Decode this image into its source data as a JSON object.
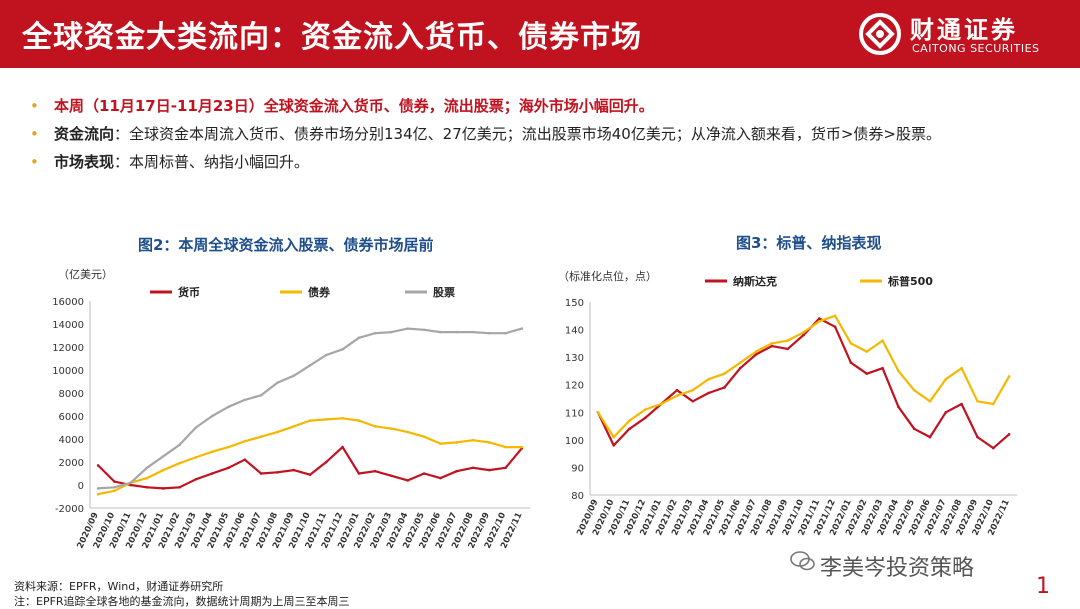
{
  "header": {
    "title": "全球资金大类流向：资金流入货币、债券市场",
    "logo_cn": "财通证券",
    "logo_en": "CAITONG SECURITIES"
  },
  "bullets": {
    "b1": "本周（11月17日-11月23日）全球资金流入货币、债券，流出股票；海外市场小幅回升。",
    "b2_head": "资金流向",
    "b2_text": "：全球资金本周流入货币、债券市场分别134亿、27亿美元；流出股票市场40亿美元；从净流入额来看，货币>债券>股票。",
    "b3_head": "市场表现",
    "b3_text": "：本周标普、纳指小幅回升。"
  },
  "colors": {
    "red": "#c1121f",
    "gold": "#f5b800",
    "grey": "#a6a6a6",
    "title_blue": "#1f4e8c"
  },
  "chart_data": [
    {
      "type": "line",
      "title": "图2：本周全球资金流入股票、债券市场居前",
      "unit": "（亿美元）",
      "ylim": [
        -2000,
        16000
      ],
      "yticks": [
        -2000,
        0,
        2000,
        4000,
        6000,
        8000,
        10000,
        12000,
        14000,
        16000
      ],
      "categories": [
        "2020/09",
        "2020/10",
        "2020/11",
        "2020/12",
        "2021/01",
        "2021/02",
        "2021/03",
        "2021/04",
        "2021/05",
        "2021/06",
        "2021/07",
        "2021/08",
        "2021/09",
        "2021/10",
        "2021/11",
        "2021/12",
        "2022/01",
        "2022/02",
        "2022/03",
        "2022/04",
        "2022/05",
        "2022/06",
        "2022/07",
        "2022/08",
        "2022/09",
        "2022/10",
        "2022/11"
      ],
      "series": [
        {
          "name": "货币",
          "color": "#c1121f",
          "values": [
            1700,
            300,
            0,
            -200,
            -300,
            -200,
            500,
            1000,
            1500,
            2200,
            1000,
            1100,
            1300,
            900,
            2000,
            3300,
            1000,
            1200,
            800,
            400,
            1000,
            600,
            1200,
            1500,
            1300,
            1500,
            3200
          ]
        },
        {
          "name": "债券",
          "color": "#f5b800",
          "values": [
            -800,
            -500,
            200,
            600,
            1300,
            1900,
            2400,
            2900,
            3300,
            3800,
            4200,
            4600,
            5100,
            5600,
            5700,
            5800,
            5600,
            5100,
            4900,
            4600,
            4200,
            3600,
            3700,
            3900,
            3700,
            3300,
            3300
          ]
        },
        {
          "name": "股票",
          "color": "#a6a6a6",
          "values": [
            -300,
            -200,
            200,
            1500,
            2500,
            3500,
            5000,
            6000,
            6800,
            7400,
            7800,
            8900,
            9500,
            10400,
            11300,
            11800,
            12800,
            13200,
            13300,
            13600,
            13500,
            13300,
            13300,
            13300,
            13200,
            13200,
            13600
          ]
        }
      ]
    },
    {
      "type": "line",
      "title": "图3：标普、纳指表现",
      "unit": "（标准化点位，点）",
      "ylim": [
        80,
        150
      ],
      "yticks": [
        80,
        90,
        100,
        110,
        120,
        130,
        140,
        150
      ],
      "categories": [
        "2020/09",
        "2020/10",
        "2020/11",
        "2020/12",
        "2021/01",
        "2021/02",
        "2021/03",
        "2021/04",
        "2021/05",
        "2021/06",
        "2021/07",
        "2021/08",
        "2021/09",
        "2021/10",
        "2021/11",
        "2021/12",
        "2022/01",
        "2022/02",
        "2022/03",
        "2022/04",
        "2022/05",
        "2022/06",
        "2022/07",
        "2022/08",
        "2022/09",
        "2022/10",
        "2022/11"
      ],
      "series": [
        {
          "name": "纳斯达克",
          "color": "#c1121f",
          "values": [
            110,
            98,
            104,
            108,
            113,
            118,
            114,
            117,
            119,
            126,
            131,
            134,
            133,
            138,
            144,
            141,
            128,
            124,
            126,
            112,
            104,
            101,
            110,
            113,
            101,
            97,
            102
          ]
        },
        {
          "name": "标普500",
          "color": "#f5b800",
          "values": [
            110,
            101,
            107,
            111,
            113,
            116,
            118,
            122,
            124,
            128,
            132,
            135,
            136,
            139,
            143,
            145,
            135,
            132,
            136,
            125,
            118,
            114,
            122,
            126,
            114,
            113,
            123
          ]
        }
      ]
    }
  ],
  "footer": {
    "source": "资料来源：EPFR，Wind，财通证券研究所",
    "note": "注：EPFR追踪全球各地的基金流向，数据统计周期为上周三至本周三"
  },
  "watermark": "李美岑投资策略",
  "page_number": "1"
}
